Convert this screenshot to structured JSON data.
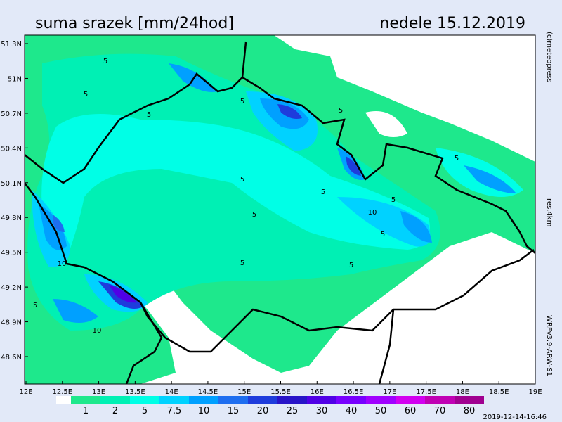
{
  "header": {
    "title": "suma srazek [mm/24hod]",
    "date": "nedele 15.12.2019"
  },
  "side_labels": {
    "copyright": "(c)meteopress",
    "resolution": "res.4km",
    "model": "WRFv3.9-ARW-S1"
  },
  "timestamp": "2019-12-14-16:46",
  "axes": {
    "lon_labels": [
      "12E",
      "12.5E",
      "13E",
      "13.5E",
      "14E",
      "14.5E",
      "15E",
      "15.5E",
      "16E",
      "16.5E",
      "17E",
      "17.5E",
      "18E",
      "18.5E",
      "19E"
    ],
    "lat_labels": [
      "51.3N",
      "51N",
      "50.7N",
      "50.4N",
      "50.1N",
      "49.8N",
      "49.5N",
      "49.2N",
      "48.9N",
      "48.6N"
    ]
  },
  "legend": {
    "labels": [
      "1",
      "2",
      "5",
      "7.5",
      "10",
      "15",
      "20",
      "25",
      "30",
      "40",
      "50",
      "60",
      "70",
      "80"
    ],
    "colors": [
      "#ffffff",
      "#1ee88c",
      "#00f0b4",
      "#00ffe6",
      "#00d2ff",
      "#00a0ff",
      "#1e6ef0",
      "#1e3cdc",
      "#2814c8",
      "#5000e6",
      "#7800ff",
      "#a000ff",
      "#d200f0",
      "#c000b4",
      "#a00090"
    ]
  },
  "contour_labels": [
    "5",
    "5",
    "5",
    "5",
    "5",
    "5",
    "5",
    "5",
    "5",
    "5",
    "5",
    "10",
    "10",
    "10",
    "5",
    "5",
    "5"
  ]
}
